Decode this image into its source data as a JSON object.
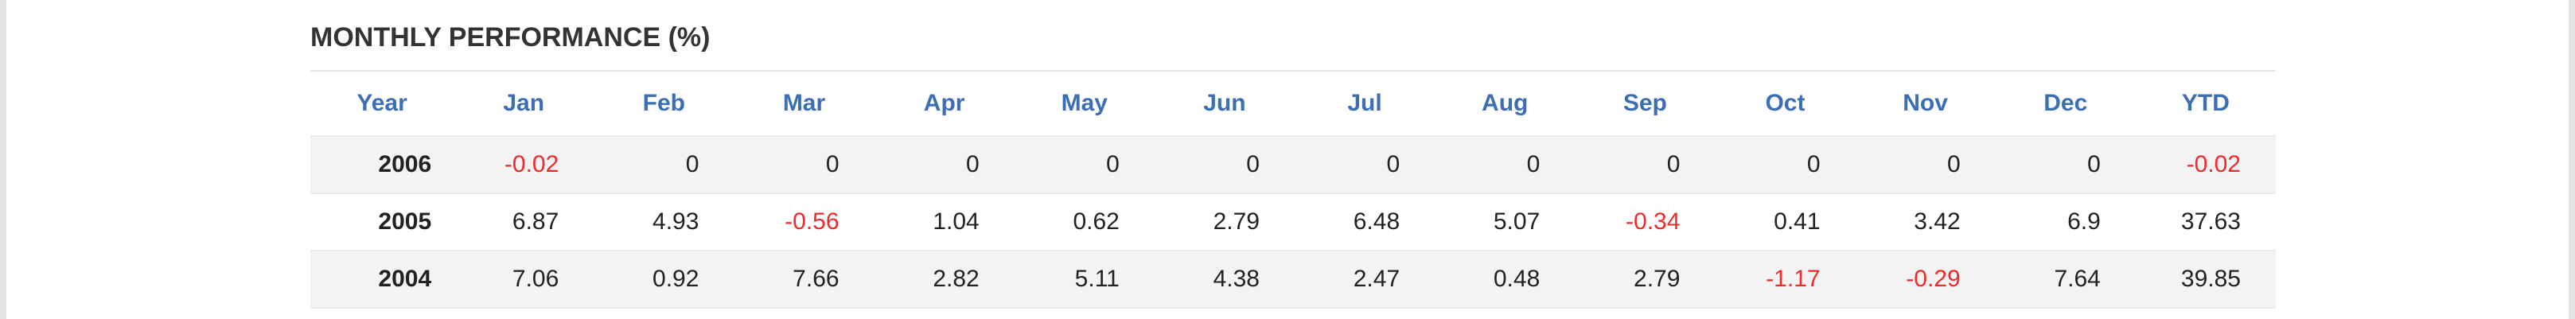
{
  "title": "MONTHLY PERFORMANCE (%)",
  "colors": {
    "header_text": "#3c6eb4",
    "negative": "#ee2a2a",
    "body_text": "#222222",
    "title_text": "#333333",
    "stripe": "#f3f3f3"
  },
  "headers": [
    "Year",
    "Jan",
    "Feb",
    "Mar",
    "Apr",
    "May",
    "Jun",
    "Jul",
    "Aug",
    "Sep",
    "Oct",
    "Nov",
    "Dec",
    "YTD"
  ],
  "rows": [
    {
      "year": "2006",
      "values": [
        "-0.02",
        "0",
        "0",
        "0",
        "0",
        "0",
        "0",
        "0",
        "0",
        "0",
        "0",
        "0",
        "-0.02"
      ]
    },
    {
      "year": "2005",
      "values": [
        "6.87",
        "4.93",
        "-0.56",
        "1.04",
        "0.62",
        "2.79",
        "6.48",
        "5.07",
        "-0.34",
        "0.41",
        "3.42",
        "6.9",
        "37.63"
      ]
    },
    {
      "year": "2004",
      "values": [
        "7.06",
        "0.92",
        "7.66",
        "2.82",
        "5.11",
        "4.38",
        "2.47",
        "0.48",
        "2.79",
        "-1.17",
        "-0.29",
        "7.64",
        "39.85"
      ]
    }
  ]
}
